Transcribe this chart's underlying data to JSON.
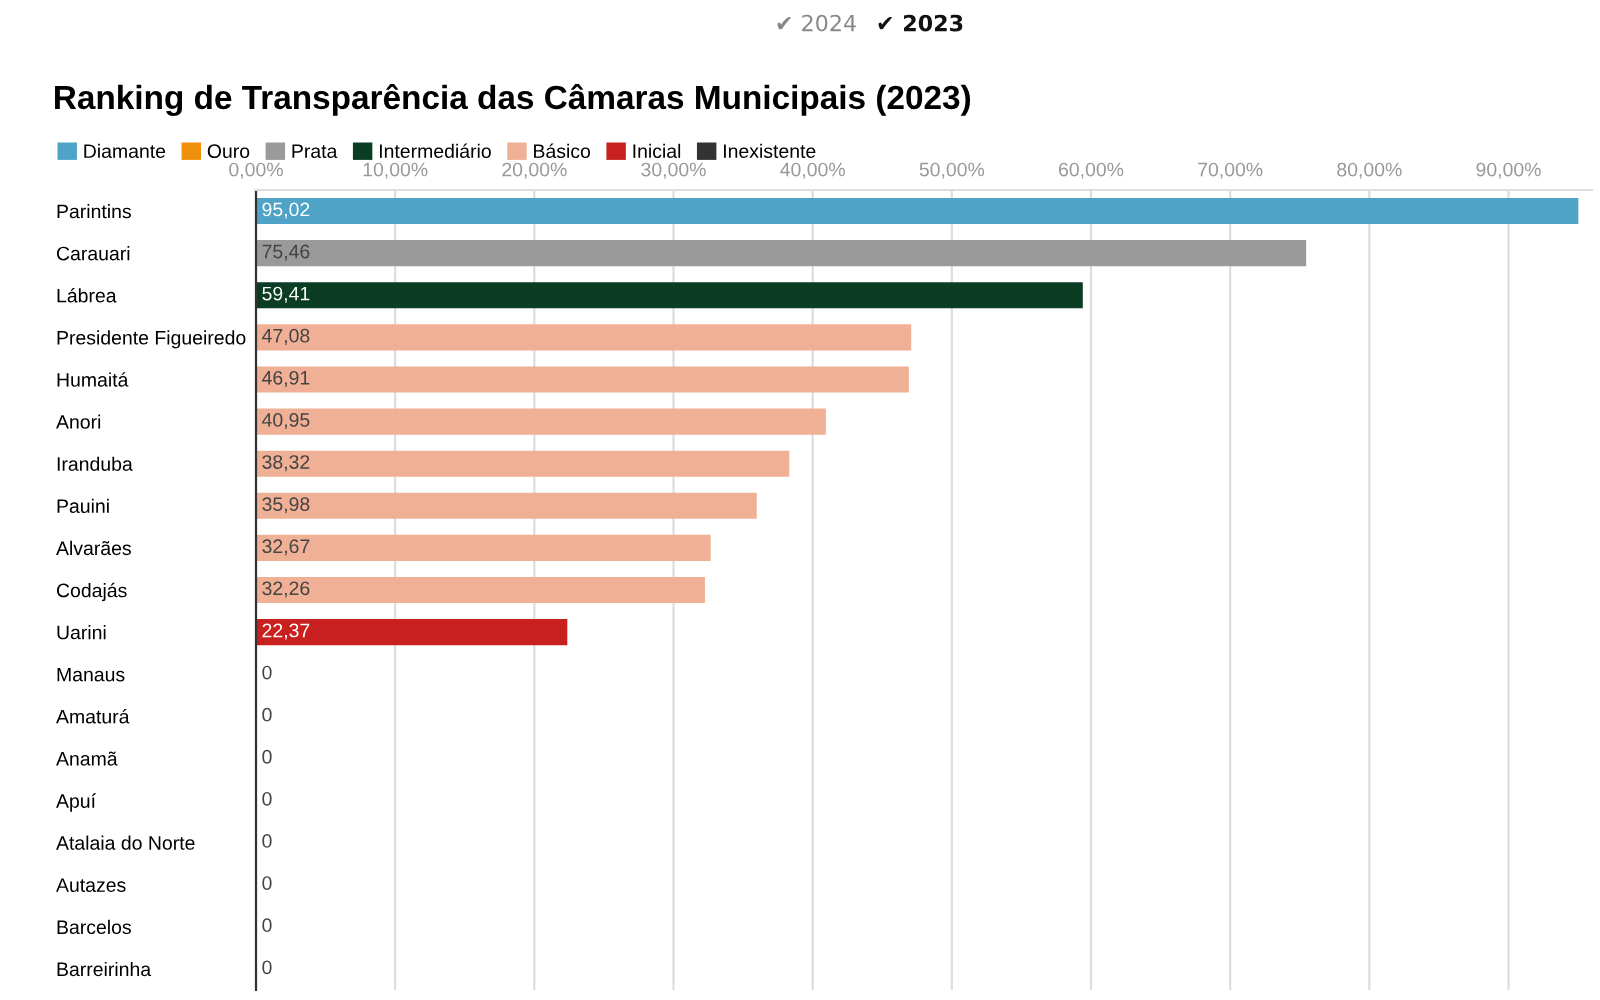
{
  "chart_data": {
    "type": "bar",
    "orientation": "horizontal",
    "title": "Ranking de Transparência das Câmaras Municipais (2023)",
    "annotations": [
      "✔ 2024",
      "✔ 2023"
    ],
    "categories": [
      "Parintins",
      "Carauari",
      "Lábrea",
      "Presidente Figueiredo",
      "Humaitá",
      "Anori",
      "Iranduba",
      "Pauini",
      "Alvarães",
      "Codajás",
      "Uarini",
      "Manaus",
      "Amaturá",
      "Anamã",
      "Apuí",
      "Atalaia do Norte",
      "Autazes",
      "Barcelos",
      "Barreirinha"
    ],
    "series": [
      {
        "name": "Diamante",
        "color": "#4fa3c7",
        "values": [
          95.02,
          null,
          null,
          null,
          null,
          null,
          null,
          null,
          null,
          null,
          null,
          null,
          null,
          null,
          null,
          null,
          null,
          null,
          null
        ],
        "value_labels": [
          "95,02",
          null,
          null,
          null,
          null,
          null,
          null,
          null,
          null,
          null,
          null,
          null,
          null,
          null,
          null,
          null,
          null,
          null,
          null
        ]
      },
      {
        "name": "Ouro",
        "color": "#f0900a",
        "values": [
          null,
          null,
          null,
          null,
          null,
          null,
          null,
          null,
          null,
          null,
          null,
          null,
          null,
          null,
          null,
          null,
          null,
          null,
          null
        ]
      },
      {
        "name": "Prata",
        "color": "#9a9a9a",
        "values": [
          null,
          75.46,
          null,
          null,
          null,
          null,
          null,
          null,
          null,
          null,
          null,
          null,
          null,
          null,
          null,
          null,
          null,
          null,
          null
        ],
        "value_labels": [
          null,
          "75,46",
          null,
          null,
          null,
          null,
          null,
          null,
          null,
          null,
          null,
          null,
          null,
          null,
          null,
          null,
          null,
          null,
          null
        ]
      },
      {
        "name": "Intermediário",
        "color": "#0b3d24",
        "values": [
          null,
          null,
          59.41,
          null,
          null,
          null,
          null,
          null,
          null,
          null,
          null,
          null,
          null,
          null,
          null,
          null,
          null,
          null,
          null
        ],
        "value_labels": [
          null,
          null,
          "59,41",
          null,
          null,
          null,
          null,
          null,
          null,
          null,
          null,
          null,
          null,
          null,
          null,
          null,
          null,
          null,
          null
        ]
      },
      {
        "name": "Básico",
        "color": "#f0b096",
        "values": [
          null,
          null,
          null,
          47.08,
          46.91,
          40.95,
          38.32,
          35.98,
          32.67,
          32.26,
          null,
          null,
          null,
          null,
          null,
          null,
          null,
          null,
          null
        ],
        "value_labels": [
          null,
          null,
          null,
          "47,08",
          "46,91",
          "40,95",
          "38,32",
          "35,98",
          "32,67",
          "32,26",
          null,
          null,
          null,
          null,
          null,
          null,
          null,
          null,
          null
        ]
      },
      {
        "name": "Inicial",
        "color": "#c8201e",
        "values": [
          null,
          null,
          null,
          null,
          null,
          null,
          null,
          null,
          null,
          null,
          22.37,
          null,
          null,
          null,
          null,
          null,
          null,
          null,
          null
        ],
        "value_labels": [
          null,
          null,
          null,
          null,
          null,
          null,
          null,
          null,
          null,
          null,
          "22,37",
          null,
          null,
          null,
          null,
          null,
          null,
          null,
          null
        ]
      },
      {
        "name": "Inexistente",
        "color": "#333333",
        "values": [
          null,
          null,
          null,
          null,
          null,
          null,
          null,
          null,
          null,
          null,
          null,
          0,
          0,
          0,
          0,
          0,
          0,
          0,
          0
        ],
        "value_labels": [
          null,
          null,
          null,
          null,
          null,
          null,
          null,
          null,
          null,
          null,
          null,
          "0",
          "0",
          "0",
          "0",
          "0",
          "0",
          "0",
          "0"
        ]
      }
    ],
    "xlim": [
      0,
      96
    ],
    "xticks": [
      {
        "value": 0,
        "label": "0,00%"
      },
      {
        "value": 10,
        "label": "10,00%"
      },
      {
        "value": 20,
        "label": "20,00%"
      },
      {
        "value": 30,
        "label": "30,00%"
      },
      {
        "value": 40,
        "label": "40,00%"
      },
      {
        "value": 50,
        "label": "50,00%"
      },
      {
        "value": 60,
        "label": "60,00%"
      },
      {
        "value": 70,
        "label": "70,00%"
      },
      {
        "value": 80,
        "label": "80,00%"
      },
      {
        "value": 90,
        "label": "90,00%"
      }
    ],
    "grid": "x",
    "legend": "top left"
  }
}
